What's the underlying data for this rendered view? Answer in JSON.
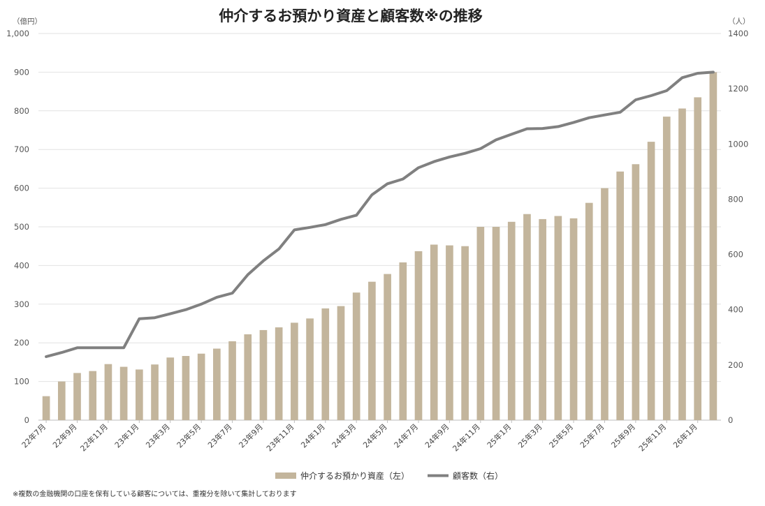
{
  "chart_data": {
    "type": "bar+line",
    "title": "仲介するお預かり資産と顧客数※の推移",
    "left_unit": "（億円）",
    "right_unit": "（人）",
    "y_left": {
      "min": 0,
      "max": 1000,
      "ticks": [
        "0",
        "100",
        "200",
        "300",
        "400",
        "500",
        "600",
        "700",
        "800",
        "900",
        "1,000"
      ]
    },
    "y_right": {
      "min": 0,
      "max": 1400,
      "ticks": [
        "0",
        "200",
        "400",
        "600",
        "800",
        "1000",
        "1200",
        "1400"
      ]
    },
    "x_labels": [
      {
        "index": 0,
        "label": "22年7月"
      },
      {
        "index": 2,
        "label": "22年9月"
      },
      {
        "index": 4,
        "label": "22年11月"
      },
      {
        "index": 6,
        "label": "23年1月"
      },
      {
        "index": 8,
        "label": "23年3月"
      },
      {
        "index": 10,
        "label": "23年5月"
      },
      {
        "index": 12,
        "label": "23年7月"
      },
      {
        "index": 14,
        "label": "23年9月"
      },
      {
        "index": 16,
        "label": "23年11月"
      },
      {
        "index": 18,
        "label": "24年1月"
      },
      {
        "index": 20,
        "label": "24年3月"
      },
      {
        "index": 22,
        "label": "24年5月"
      },
      {
        "index": 24,
        "label": "24年7月"
      },
      {
        "index": 26,
        "label": "24年9月"
      },
      {
        "index": 28,
        "label": "24年11月"
      },
      {
        "index": 30,
        "label": "25年1月"
      },
      {
        "index": 32,
        "label": "25年3月"
      },
      {
        "index": 34,
        "label": "25年5月"
      },
      {
        "index": 36,
        "label": "25年7月"
      },
      {
        "index": 38,
        "label": "25年9月"
      },
      {
        "index": 40,
        "label": "25年11月"
      },
      {
        "index": 42,
        "label": "26年1月"
      }
    ],
    "series": [
      {
        "name": "仲介するお預かり資産（左）",
        "type": "bar",
        "axis": "left",
        "color": "#c3b59c",
        "values": [
          62,
          100,
          122,
          127,
          145,
          138,
          131,
          144,
          162,
          166,
          172,
          185,
          204,
          222,
          233,
          240,
          252,
          263,
          289,
          295,
          330,
          358,
          378,
          408,
          437,
          454,
          452,
          450,
          500,
          500,
          513,
          533,
          520,
          528,
          522,
          562,
          600,
          643,
          662,
          720,
          785,
          806,
          835,
          900
        ]
      },
      {
        "name": "顧客数（右）",
        "type": "line",
        "axis": "right",
        "color": "#808080",
        "values": [
          230,
          245,
          262,
          262,
          262,
          262,
          367,
          371,
          385,
          400,
          420,
          445,
          460,
          527,
          577,
          620,
          689,
          698,
          708,
          727,
          742,
          816,
          856,
          873,
          914,
          936,
          953,
          966,
          983,
          1015,
          1035,
          1055,
          1056,
          1063,
          1078,
          1095,
          1105,
          1115,
          1160,
          1175,
          1193,
          1240,
          1256,
          1260
        ]
      }
    ],
    "grid": true,
    "legend_position": "bottom-center",
    "note": "※複数の金融機関の口座を保有している顧客については、重複分を除いて集計しております"
  }
}
